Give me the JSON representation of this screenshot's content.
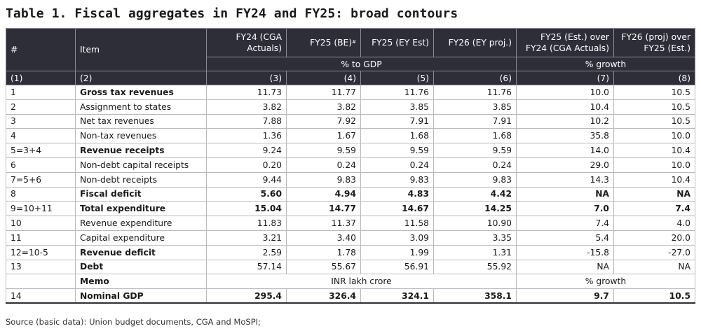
{
  "title": "Table 1. Fiscal aggregates in FY24 and FY25: broad contours",
  "header": {
    "hash": "#",
    "item": "Item",
    "col3": "FY24 (CGA Actuals)",
    "col4": "FY25 (BE)",
    "col4_sup": "#",
    "col5": "FY25 (EY Est)",
    "col6": "FY26 (EY proj.)",
    "col7": "FY25 (Est.) over FY24 (CGA Actuals)",
    "col8": "FY26 (proj) over FY25 (Est.)",
    "unit_gdp": "% to GDP",
    "unit_growth": "% growth",
    "index": [
      "(1)",
      "(2)",
      "(3)",
      "(4)",
      "(5)",
      "(6)",
      "(7)",
      "(8)"
    ]
  },
  "rows": [
    {
      "no": "1",
      "item": "Gross tax revenues",
      "v": [
        "11.73",
        "11.77",
        "11.76",
        "11.76",
        "10.0",
        "10.5"
      ]
    },
    {
      "no": "2",
      "item": "Assignment to states",
      "v": [
        "3.82",
        "3.82",
        "3.85",
        "3.85",
        "10.4",
        "10.5"
      ]
    },
    {
      "no": "3",
      "item": "Net tax revenues",
      "v": [
        "7.88",
        "7.92",
        "7.91",
        "7.91",
        "10.2",
        "10.5"
      ]
    },
    {
      "no": "4",
      "item": "Non-tax revenues",
      "v": [
        "1.36",
        "1.67",
        "1.68",
        "1.68",
        "35.8",
        "10.0"
      ]
    },
    {
      "no": "5=3+4",
      "item": "Revenue receipts",
      "v": [
        "9.24",
        "9.59",
        "9.59",
        "9.59",
        "14.0",
        "10.4"
      ]
    },
    {
      "no": "6",
      "item": "Non-debt capital receipts",
      "v": [
        "0.20",
        "0.24",
        "0.24",
        "0.24",
        "29.0",
        "10.0"
      ]
    },
    {
      "no": "7=5+6",
      "item": "Non-debt receipts",
      "v": [
        "9.44",
        "9.83",
        "9.83",
        "9.83",
        "14.3",
        "10.4"
      ]
    },
    {
      "no": "8",
      "item": "Fiscal deficit",
      "v": [
        "5.60",
        "4.94",
        "4.83",
        "4.42",
        "NA",
        "NA"
      ]
    },
    {
      "no": "9=10+11",
      "item": "Total expenditure",
      "v": [
        "15.04",
        "14.77",
        "14.67",
        "14.25",
        "7.0",
        "7.4"
      ]
    },
    {
      "no": "10",
      "item": "Revenue expenditure",
      "v": [
        "11.83",
        "11.37",
        "11.58",
        "10.90",
        "7.4",
        "4.0"
      ]
    },
    {
      "no": "11",
      "item": "Capital expenditure",
      "v": [
        "3.21",
        "3.40",
        "3.09",
        "3.35",
        "5.4",
        "20.0"
      ]
    },
    {
      "no": "12=10-5",
      "item": "Revenue deficit",
      "v": [
        "2.59",
        "1.78",
        "1.99",
        "1.31",
        "-15.8",
        "-27.0"
      ]
    },
    {
      "no": "13",
      "item": "Debt",
      "v": [
        "57.14",
        "55.67",
        "56.91",
        "55.92",
        "NA",
        "NA"
      ]
    }
  ],
  "memo": {
    "label": "Memo",
    "unit_left": "INR lakh crore",
    "unit_right": "% growth"
  },
  "gdp_row": {
    "no": "14",
    "item": "Nominal GDP",
    "v": [
      "295.4",
      "326.4",
      "324.1",
      "358.1",
      "9.7",
      "10.5"
    ]
  },
  "source": "Source (basic data): Union budget documents, CGA and MoSPI;"
}
